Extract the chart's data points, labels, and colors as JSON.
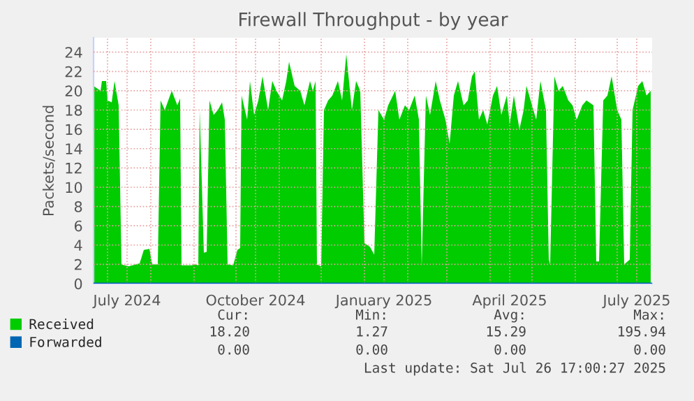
{
  "chart_data": {
    "type": "area",
    "title": "Firewall Throughput - by year",
    "ylabel": "Packets/second",
    "xlim": [
      "2024-06-21",
      "2025-07-26"
    ],
    "xticks": [
      {
        "value": "2024-07-01",
        "label": null
      },
      {
        "value": "2024-07-15",
        "label": "July 2024"
      },
      {
        "value": "2024-08-01",
        "label": null
      },
      {
        "value": "2024-09-01",
        "label": null
      },
      {
        "value": "2024-10-01",
        "label": null
      },
      {
        "value": "2024-10-15",
        "label": "October 2024"
      },
      {
        "value": "2024-11-01",
        "label": null
      },
      {
        "value": "2024-12-01",
        "label": null
      },
      {
        "value": "2025-01-01",
        "label": null
      },
      {
        "value": "2025-01-15",
        "label": "January 2025"
      },
      {
        "value": "2025-02-01",
        "label": null
      },
      {
        "value": "2025-03-01",
        "label": null
      },
      {
        "value": "2025-04-01",
        "label": null
      },
      {
        "value": "2025-04-15",
        "label": "April 2025"
      },
      {
        "value": "2025-05-01",
        "label": null
      },
      {
        "value": "2025-06-01",
        "label": null
      },
      {
        "value": "2025-07-01",
        "label": null
      },
      {
        "value": "2025-07-15",
        "label": "July 2025"
      }
    ],
    "ylim": [
      0,
      25.5
    ],
    "yticks": [
      0,
      2,
      4,
      6,
      8,
      10,
      12,
      14,
      16,
      18,
      20,
      22,
      24
    ],
    "grid": true,
    "legend": "bottom",
    "x": [
      "2024-06-21",
      "2024-06-26",
      "2024-06-27",
      "2024-06-30",
      "2024-07-01",
      "2024-07-04",
      "2024-07-06",
      "2024-07-09",
      "2024-07-11",
      "2024-07-16",
      "2024-07-24",
      "2024-07-27",
      "2024-07-31",
      "2024-08-02",
      "2024-08-06",
      "2024-08-08",
      "2024-08-11",
      "2024-08-16",
      "2024-08-20",
      "2024-08-22",
      "2024-08-23",
      "2024-08-30",
      "2024-09-02",
      "2024-09-04",
      "2024-09-05",
      "2024-09-08",
      "2024-09-10",
      "2024-09-12",
      "2024-09-15",
      "2024-09-18",
      "2024-09-21",
      "2024-09-23",
      "2024-09-25",
      "2024-09-29",
      "2024-10-02",
      "2024-10-04",
      "2024-10-05",
      "2024-10-09",
      "2024-10-11",
      "2024-10-14",
      "2024-10-17",
      "2024-10-20",
      "2024-10-24",
      "2024-10-27",
      "2024-10-30",
      "2024-11-03",
      "2024-11-06",
      "2024-11-08",
      "2024-11-12",
      "2024-11-16",
      "2024-11-19",
      "2024-11-23",
      "2024-11-25",
      "2024-11-27",
      "2024-11-28",
      "2024-12-01",
      "2024-12-03",
      "2024-12-06",
      "2024-12-09",
      "2024-12-13",
      "2024-12-16",
      "2024-12-19",
      "2024-12-23",
      "2024-12-26",
      "2024-12-29",
      "2025-01-01",
      "2025-01-05",
      "2025-01-08",
      "2025-01-11",
      "2025-01-15",
      "2025-01-18",
      "2025-01-23",
      "2025-01-26",
      "2025-01-30",
      "2025-02-02",
      "2025-02-06",
      "2025-02-09",
      "2025-02-11",
      "2025-02-14",
      "2025-02-17",
      "2025-02-21",
      "2025-02-24",
      "2025-02-28",
      "2025-03-03",
      "2025-03-06",
      "2025-03-09",
      "2025-03-13",
      "2025-03-16",
      "2025-03-19",
      "2025-03-21",
      "2025-03-24",
      "2025-03-27",
      "2025-03-30",
      "2025-04-03",
      "2025-04-06",
      "2025-04-09",
      "2025-04-13",
      "2025-04-15",
      "2025-04-18",
      "2025-04-22",
      "2025-04-25",
      "2025-04-27",
      "2025-04-30",
      "2025-05-04",
      "2025-05-07",
      "2025-05-11",
      "2025-05-13",
      "2025-05-14",
      "2025-05-17",
      "2025-05-20",
      "2025-05-23",
      "2025-05-27",
      "2025-05-30",
      "2025-06-02",
      "2025-06-06",
      "2025-06-09",
      "2025-06-14",
      "2025-06-16",
      "2025-06-18",
      "2025-06-21",
      "2025-06-24",
      "2025-06-27",
      "2025-07-01",
      "2025-07-04",
      "2025-07-06",
      "2025-07-10",
      "2025-07-12",
      "2025-07-16",
      "2025-07-19",
      "2025-07-22",
      "2025-07-25"
    ],
    "series": [
      {
        "name": "Received",
        "color": "#00cc00",
        "values": [
          20.5,
          20,
          21,
          21,
          19,
          18.8,
          21,
          18.5,
          2,
          1.8,
          2.1,
          3.5,
          3.6,
          2,
          2,
          19,
          18,
          20,
          18.5,
          19.2,
          1.9,
          1.9,
          2,
          1.9,
          18,
          3.2,
          3.3,
          19,
          17.5,
          18,
          18.8,
          17,
          2,
          1.9,
          3.5,
          3.7,
          19.5,
          17,
          21,
          17.5,
          19,
          21.5,
          18,
          21,
          20,
          19,
          21,
          23,
          20.5,
          20,
          18.5,
          21,
          20,
          21,
          2,
          1.8,
          18,
          19,
          19.5,
          21,
          19,
          23.8,
          18,
          21,
          20,
          4.2,
          3.8,
          3,
          18,
          17,
          18.5,
          20,
          17,
          18.5,
          18,
          19.5,
          17,
          1.8,
          19.5,
          17.5,
          21,
          19,
          17,
          14.5,
          19.5,
          21,
          18.5,
          19,
          21.5,
          22,
          17,
          18,
          16.5,
          19.5,
          20.5,
          17.5,
          19.5,
          16.5,
          19.5,
          16,
          18,
          20.5,
          19,
          17,
          21,
          18,
          2.5,
          2,
          21.5,
          20,
          20.5,
          19,
          18.5,
          17,
          18.5,
          19,
          18.5,
          2.3,
          2.3,
          19,
          19.5,
          21.5,
          18,
          17,
          2,
          2.5,
          18,
          20.5,
          21,
          19.5,
          20
        ]
      },
      {
        "name": "Forwarded",
        "color": "#0066b3",
        "type": "line",
        "x": [
          "2024-06-21",
          "2025-07-26"
        ],
        "values": [
          0,
          0
        ]
      }
    ],
    "annotations": [
      "Cur:",
      "Min:",
      "Avg:",
      "Max:",
      "18.20",
      "1.27",
      "15.29",
      "195.94",
      "0.00",
      "0.00",
      "0.00",
      "0.00",
      "Last update: Sat Jul 26 17:00:27 2025"
    ]
  }
}
